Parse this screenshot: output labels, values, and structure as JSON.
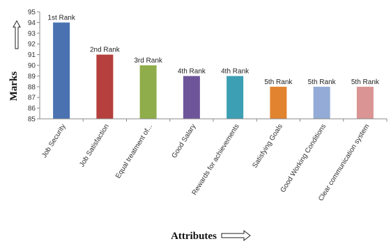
{
  "chart_data": {
    "type": "bar",
    "categories": [
      "Job Security",
      "Job Satisfaction",
      "Equal treatment of...",
      "Good Salary",
      "Rewards for achievements",
      "Satisfying Goals",
      "Good Working Conditions",
      "Clear communication system"
    ],
    "values": [
      94,
      91,
      90,
      89,
      89,
      88,
      88,
      88
    ],
    "data_labels": [
      "1st Rank",
      "2nd Rank",
      "3rd Rank",
      "4th Rank",
      "4th Rank",
      "5th Rank",
      "5th Rank",
      "5th Rank"
    ],
    "colors": [
      "#4a72b0",
      "#b5403d",
      "#8fad4a",
      "#6e559a",
      "#3c9fb3",
      "#e2832f",
      "#93abd6",
      "#d99493"
    ],
    "xlabel": "Attributes",
    "ylabel": "Marks",
    "ylim": [
      85,
      95
    ],
    "yticks": [
      85,
      86,
      87,
      88,
      89,
      90,
      91,
      92,
      93,
      94,
      95
    ],
    "grid": false,
    "legend": "none"
  }
}
